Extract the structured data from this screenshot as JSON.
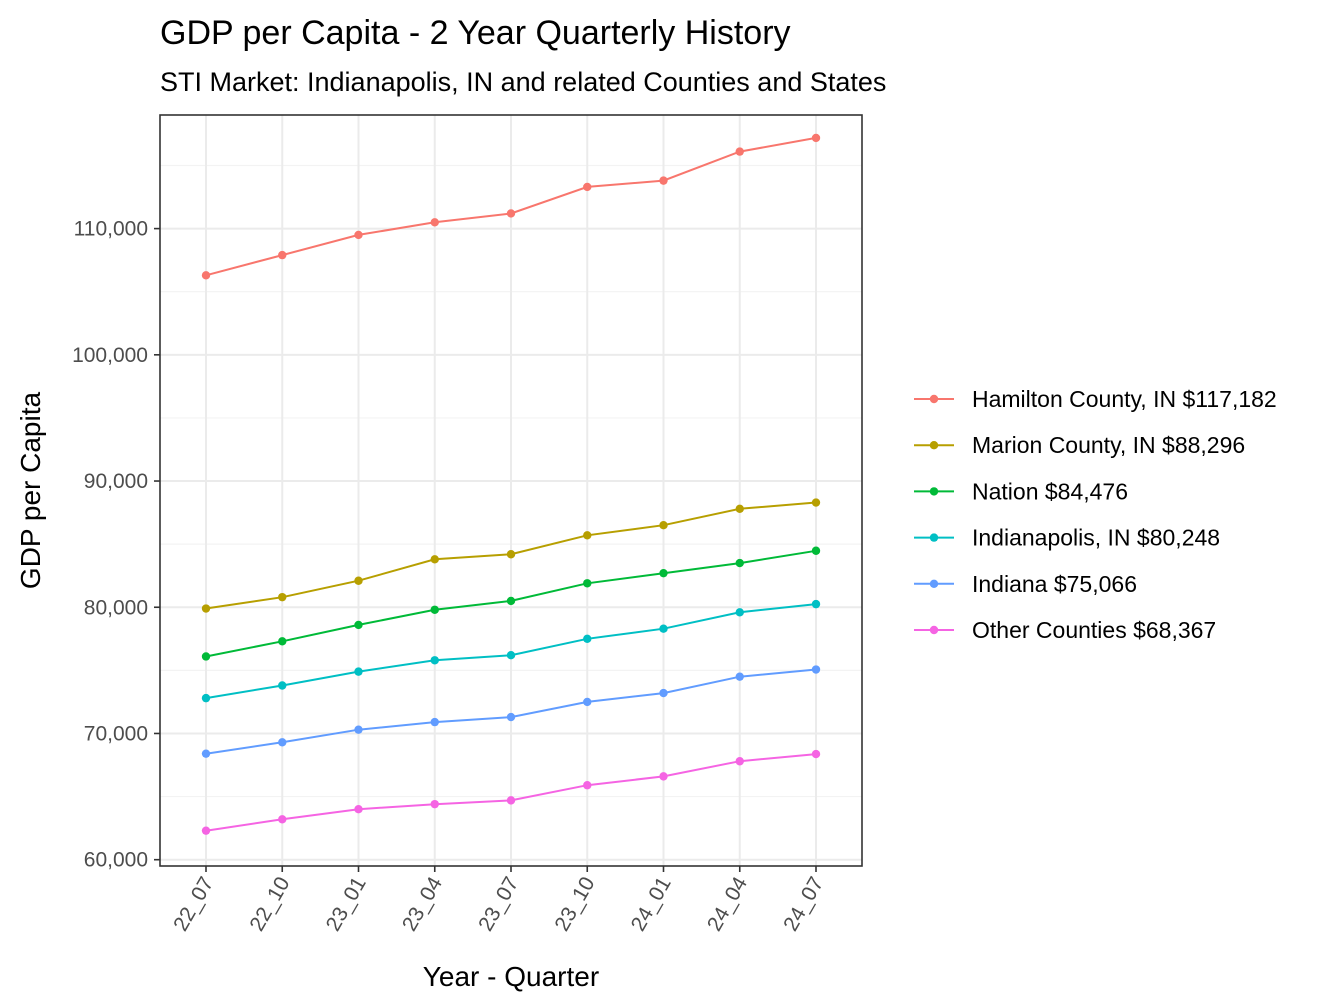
{
  "chart_data": {
    "type": "line",
    "title": "GDP per Capita - 2 Year Quarterly History",
    "subtitle": "STI Market: Indianapolis, IN and related Counties and States",
    "xlabel": "Year - Quarter",
    "ylabel": "GDP per Capita",
    "categories": [
      "22_07",
      "22_10",
      "23_01",
      "23_04",
      "23_07",
      "23_10",
      "24_01",
      "24_04",
      "24_07"
    ],
    "ylim": [
      59500,
      119000
    ],
    "yticks": [
      60000,
      70000,
      80000,
      90000,
      100000,
      110000
    ],
    "ytick_labels": [
      "60,000",
      "70,000",
      "80,000",
      "90,000",
      "100,000",
      "110,000"
    ],
    "grid": true,
    "legend_position": "right",
    "series": [
      {
        "name": "Hamilton County, IN $117,182",
        "color": "#F8766D",
        "values": [
          106300,
          107900,
          109500,
          110500,
          111200,
          113300,
          113800,
          116100,
          117182
        ]
      },
      {
        "name": "Marion County, IN $88,296",
        "color": "#B79F00",
        "values": [
          79900,
          80800,
          82100,
          83800,
          84200,
          85700,
          86500,
          87800,
          88296
        ]
      },
      {
        "name": "Nation $84,476",
        "color": "#00BA38",
        "values": [
          76100,
          77300,
          78600,
          79800,
          80500,
          81900,
          82700,
          83500,
          84476
        ]
      },
      {
        "name": "Indianapolis, IN $80,248",
        "color": "#00BFC4",
        "values": [
          72800,
          73800,
          74900,
          75800,
          76200,
          77500,
          78300,
          79600,
          80248
        ]
      },
      {
        "name": "Indiana $75,066",
        "color": "#619CFF",
        "values": [
          68400,
          69300,
          70300,
          70900,
          71300,
          72500,
          73200,
          74500,
          75066
        ]
      },
      {
        "name": "Other Counties $68,367",
        "color": "#F564E3",
        "values": [
          62300,
          63200,
          64000,
          64400,
          64700,
          65900,
          66600,
          67800,
          68367
        ]
      }
    ]
  }
}
